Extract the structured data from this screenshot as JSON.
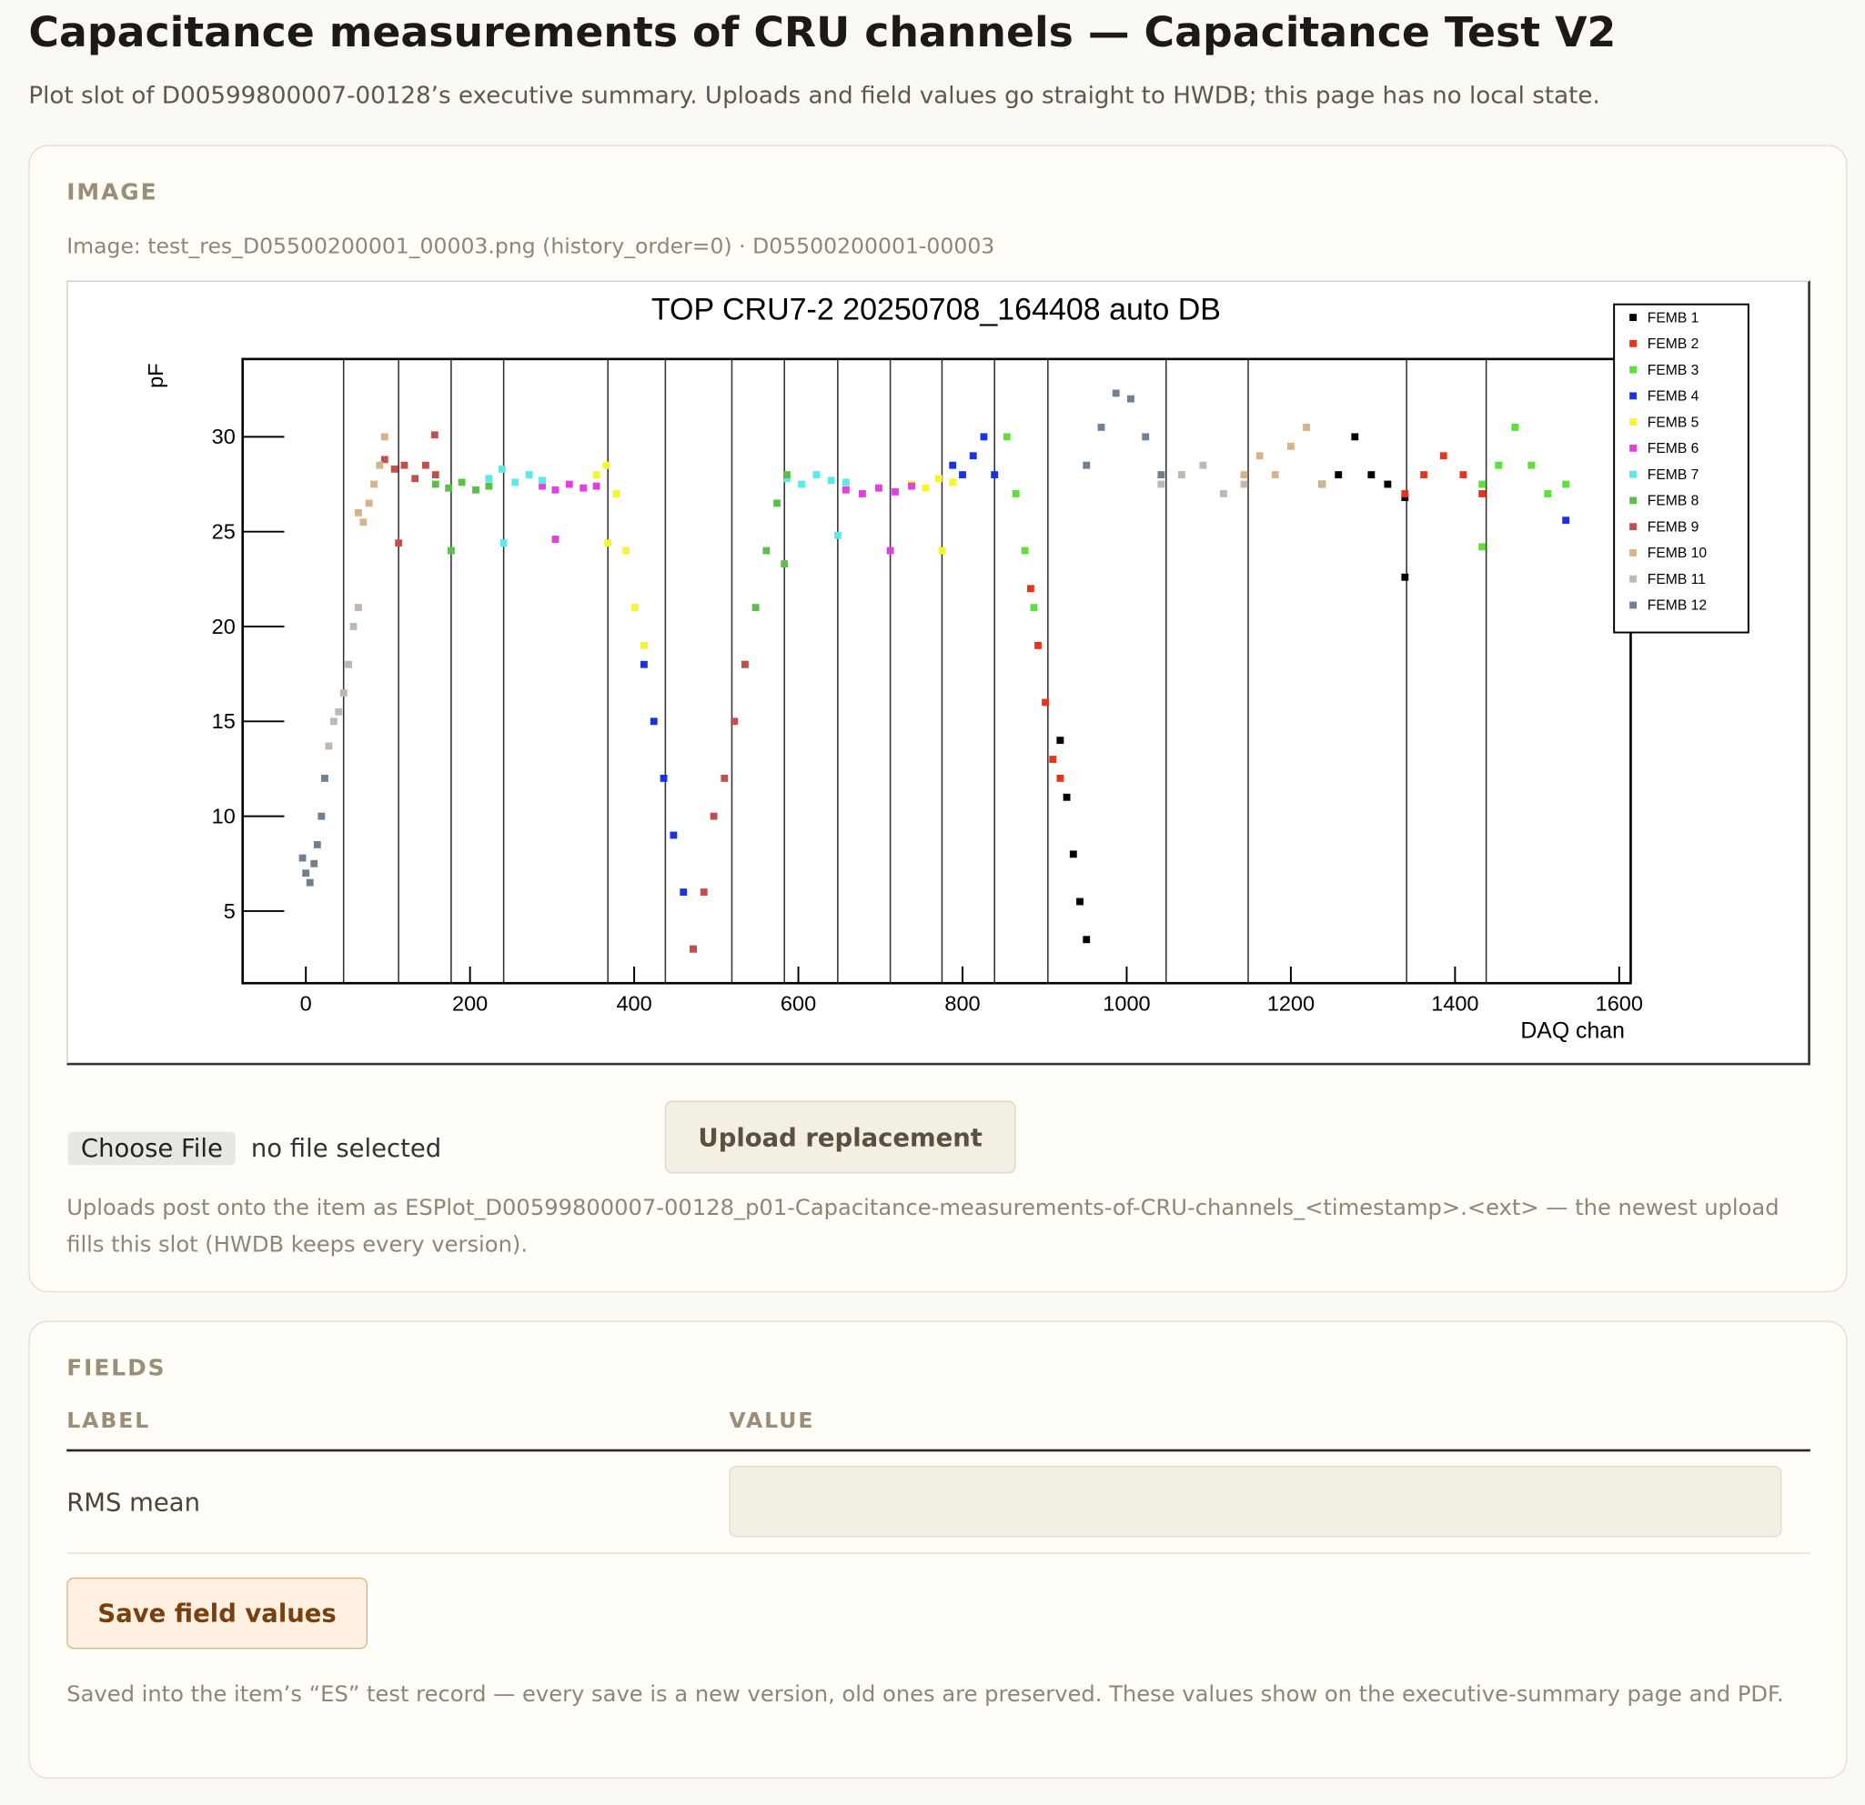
{
  "header": {
    "title": "Capacitance measurements of CRU channels — Capacitance Test V2",
    "subtitle": "Plot slot of D00599800007-00128’s executive summary. Uploads and field values go straight to HWDB; this page has no local state."
  },
  "image": {
    "section_label": "IMAGE",
    "caption": "Image: test_res_D05500200001_00003.png (history_order=0) · D05500200001-00003",
    "file_button": "Choose File",
    "file_status": "no file selected",
    "upload_button": "Upload replacement",
    "note": "Uploads post onto the item as ESPlot_D00599800007-00128_p01-Capacitance-measurements-of-CRU-channels_<timestamp>.<ext> — the newest upload fills this slot (HWDB keeps every version)."
  },
  "chart_data": {
    "type": "scatter",
    "title": "TOP CRU7-2 20250708_164408 auto DB",
    "ylabel": "pF",
    "xlabel": "DAQ chan",
    "xlim": [
      -77,
      1614
    ],
    "ylim": [
      1.2,
      34.1
    ],
    "xticks": [
      0,
      200,
      400,
      600,
      800,
      1000,
      1200,
      1400,
      1600
    ],
    "yticks": [
      5,
      10,
      15,
      20,
      25,
      30
    ],
    "legend": "upper right",
    "boundaries": [
      46,
      113,
      177,
      241,
      368,
      438,
      519,
      583,
      648,
      712,
      775,
      839,
      904,
      1048,
      1148,
      1341,
      1438
    ],
    "series": [
      {
        "name": "FEMB 1",
        "color": "#000000",
        "x": [
          919,
          927,
          935,
          943,
          951,
          1238,
          1258,
          1278,
          1298,
          1318,
          1339,
          1339
        ],
        "values": [
          14,
          11,
          8,
          5.5,
          3.5,
          27.5,
          28,
          30,
          28,
          27.5,
          26.8,
          22.6
        ]
      },
      {
        "name": "FEMB 2",
        "color": "#e8341c",
        "x": [
          883,
          892,
          901,
          910,
          919,
          1339,
          1362,
          1386,
          1410,
          1433
        ],
        "values": [
          22,
          19,
          16,
          13,
          12,
          27,
          28,
          29,
          28,
          27
        ]
      },
      {
        "name": "FEMB 3",
        "color": "#5ee03a",
        "x": [
          854,
          865,
          876,
          887,
          1433,
          1453,
          1473,
          1493,
          1513,
          1535,
          1433
        ],
        "values": [
          30,
          27,
          24,
          21,
          27.5,
          28.5,
          30.5,
          28.5,
          27,
          27.5,
          24.2
        ]
      },
      {
        "name": "FEMB 4",
        "color": "#1a33e0",
        "x": [
          412,
          424,
          436,
          448,
          460,
          472,
          788,
          800,
          813,
          826,
          839,
          1535
        ],
        "values": [
          18,
          15,
          12,
          9,
          6,
          3,
          28.5,
          28,
          29,
          30,
          28,
          25.6
        ]
      },
      {
        "name": "FEMB 5",
        "color": "#f5f531",
        "x": [
          354,
          366,
          378,
          390,
          401,
          412,
          738,
          755,
          771,
          788,
          368,
          775
        ],
        "values": [
          28,
          28.5,
          27,
          24,
          21,
          19,
          27.5,
          27.3,
          27.8,
          27.6,
          24.4,
          24
        ]
      },
      {
        "name": "FEMB 6",
        "color": "#e040e0",
        "x": [
          288,
          304,
          321,
          338,
          354,
          658,
          678,
          698,
          718,
          738,
          304,
          712
        ],
        "values": [
          27.4,
          27.2,
          27.5,
          27.3,
          27.4,
          27.2,
          27,
          27.3,
          27.1,
          27.4,
          24.6,
          24
        ]
      },
      {
        "name": "FEMB 7",
        "color": "#5ee8e8",
        "x": [
          223,
          239,
          255,
          272,
          288,
          586,
          604,
          622,
          640,
          658,
          241,
          648
        ],
        "values": [
          27.8,
          28.3,
          27.6,
          28,
          27.7,
          27.8,
          27.5,
          28,
          27.7,
          27.6,
          24.4,
          24.8
        ]
      },
      {
        "name": "FEMB 8",
        "color": "#5cbf4a",
        "x": [
          158,
          174,
          190,
          207,
          223,
          535,
          548,
          561,
          574,
          586,
          177,
          583
        ],
        "values": [
          27.5,
          27.3,
          27.6,
          27.2,
          27.4,
          18,
          21,
          24,
          26.5,
          28,
          24,
          23.3
        ]
      },
      {
        "name": "FEMB 9",
        "color": "#c0504d",
        "x": [
          96,
          108,
          120,
          133,
          146,
          158,
          472,
          485,
          497,
          510,
          522,
          535,
          113,
          157
        ],
        "values": [
          28.8,
          28.3,
          28.5,
          27.8,
          28.5,
          28,
          3,
          6,
          10,
          12,
          15,
          18,
          24.4,
          30.1
        ]
      },
      {
        "name": "FEMB 10",
        "color": "#d4b48c",
        "x": [
          64,
          70,
          77,
          83,
          90,
          96,
          1143,
          1162,
          1181,
          1200,
          1219,
          1238
        ],
        "values": [
          26,
          25.5,
          26.5,
          27.5,
          28.5,
          30,
          28,
          29,
          28,
          29.5,
          30.5,
          27.5
        ]
      },
      {
        "name": "FEMB 11",
        "color": "#c0b8b0",
        "x": [
          28,
          34,
          40,
          46,
          52,
          58,
          64,
          1042,
          1067,
          1093,
          1118,
          1143
        ],
        "values": [
          13.7,
          15,
          15.5,
          16.5,
          18,
          20,
          21,
          27.5,
          28,
          28.5,
          27,
          27.5
        ]
      },
      {
        "name": "FEMB 12",
        "color": "#708090",
        "x": [
          -4,
          0,
          5,
          10,
          14,
          19,
          23,
          951,
          969,
          987,
          1005,
          1023,
          1042
        ],
        "values": [
          7.8,
          7,
          6.5,
          7.5,
          8.5,
          10,
          12,
          28.5,
          30.5,
          32.3,
          32,
          30,
          28
        ]
      }
    ]
  },
  "fields": {
    "section_label": "FIELDS",
    "columns": [
      "LABEL",
      "VALUE"
    ],
    "rows": [
      {
        "label": "RMS mean"
      }
    ],
    "save_button": "Save field values",
    "note": "Saved into the item’s “ES” test record — every save is a new version, old ones are preserved. These values show on the executive-summary page and PDF."
  }
}
